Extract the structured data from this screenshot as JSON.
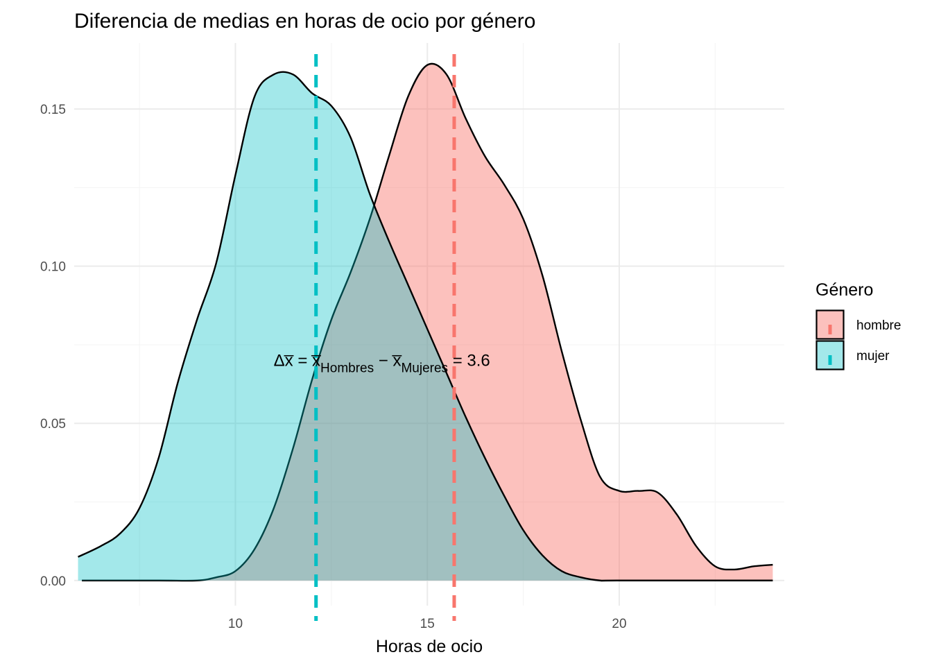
{
  "chart_data": {
    "type": "area",
    "title": "Diferencia de medias en horas de ocio por género",
    "xlabel": "Horas de ocio",
    "ylabel": "",
    "xlim": [
      5.8,
      24.3
    ],
    "ylim": [
      -0.008,
      0.171
    ],
    "x_ticks": [
      10,
      15,
      20
    ],
    "x_tick_labels": [
      "10",
      "15",
      "20"
    ],
    "x_minor_ticks": [
      7.5,
      12.5,
      17.5,
      22.5
    ],
    "y_ticks": [
      0.0,
      0.05,
      0.1,
      0.15
    ],
    "y_tick_labels": [
      "0.00",
      "0.05",
      "0.10",
      "0.15"
    ],
    "y_minor_ticks": [
      0.025,
      0.075,
      0.125
    ],
    "grid": true,
    "legend": {
      "title": "Género",
      "position": "right"
    },
    "series": [
      {
        "name": "hombre",
        "color": "#F8766D",
        "fill_opacity": 0.45,
        "mean": 15.7,
        "points": [
          [
            6.0,
            0.0
          ],
          [
            8.0,
            0.0
          ],
          [
            9.0,
            0.0
          ],
          [
            9.5,
            0.001
          ],
          [
            10.0,
            0.003
          ],
          [
            10.5,
            0.01
          ],
          [
            11.0,
            0.023
          ],
          [
            11.5,
            0.042
          ],
          [
            12.0,
            0.064
          ],
          [
            12.5,
            0.083
          ],
          [
            13.0,
            0.098
          ],
          [
            13.5,
            0.115
          ],
          [
            14.0,
            0.135
          ],
          [
            14.5,
            0.154
          ],
          [
            15.0,
            0.164
          ],
          [
            15.5,
            0.161
          ],
          [
            16.0,
            0.147
          ],
          [
            16.5,
            0.135
          ],
          [
            17.0,
            0.126
          ],
          [
            17.5,
            0.115
          ],
          [
            18.0,
            0.097
          ],
          [
            18.5,
            0.073
          ],
          [
            19.0,
            0.051
          ],
          [
            19.5,
            0.033
          ],
          [
            20.0,
            0.0285
          ],
          [
            20.5,
            0.0285
          ],
          [
            21.0,
            0.028
          ],
          [
            21.5,
            0.021
          ],
          [
            22.0,
            0.011
          ],
          [
            22.5,
            0.0045
          ],
          [
            23.0,
            0.0035
          ],
          [
            23.5,
            0.0045
          ],
          [
            24.0,
            0.005
          ]
        ]
      },
      {
        "name": "mujer",
        "color": "#00BFC4",
        "fill_opacity": 0.36,
        "mean": 12.1,
        "points": [
          [
            5.9,
            0.0075
          ],
          [
            6.5,
            0.011
          ],
          [
            7.0,
            0.015
          ],
          [
            7.5,
            0.023
          ],
          [
            8.0,
            0.039
          ],
          [
            8.5,
            0.063
          ],
          [
            9.0,
            0.083
          ],
          [
            9.5,
            0.101
          ],
          [
            10.0,
            0.129
          ],
          [
            10.5,
            0.154
          ],
          [
            11.0,
            0.161
          ],
          [
            11.5,
            0.161
          ],
          [
            12.0,
            0.155
          ],
          [
            12.5,
            0.151
          ],
          [
            13.0,
            0.141
          ],
          [
            13.5,
            0.123
          ],
          [
            14.0,
            0.108
          ],
          [
            14.5,
            0.094
          ],
          [
            15.0,
            0.08
          ],
          [
            15.5,
            0.066
          ],
          [
            16.0,
            0.052
          ],
          [
            16.5,
            0.039
          ],
          [
            17.0,
            0.027
          ],
          [
            17.5,
            0.016
          ],
          [
            18.0,
            0.008
          ],
          [
            18.5,
            0.003
          ],
          [
            19.0,
            0.001
          ],
          [
            19.5,
            0.0
          ],
          [
            20.0,
            0.0
          ],
          [
            24.0,
            0.0
          ]
        ]
      }
    ],
    "annotation": {
      "x": 12.1,
      "y": 0.07,
      "prefix": "Δx̅ = x̅",
      "sub1": "Hombres",
      "minus": " − x̅",
      "sub2": "Mujeres",
      "suffix": " = 3.6"
    }
  }
}
